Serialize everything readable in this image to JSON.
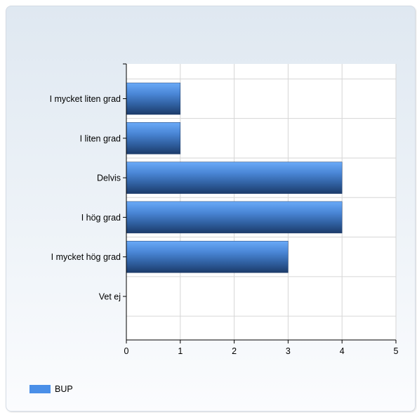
{
  "chart_data": {
    "type": "bar",
    "orientation": "horizontal",
    "categories": [
      "I mycket liten grad",
      "I liten grad",
      "Delvis",
      "I hög grad",
      "I mycket hög grad",
      "Vet ej"
    ],
    "series": [
      {
        "name": "BUP",
        "values": [
          1,
          1,
          4,
          4,
          3,
          0
        ],
        "color": "#4a8fe8"
      }
    ],
    "xlim": [
      0,
      5
    ],
    "xticks": [
      "0",
      "1",
      "2",
      "3",
      "4",
      "5"
    ],
    "grid": true,
    "legend_position": "bottom-left"
  }
}
